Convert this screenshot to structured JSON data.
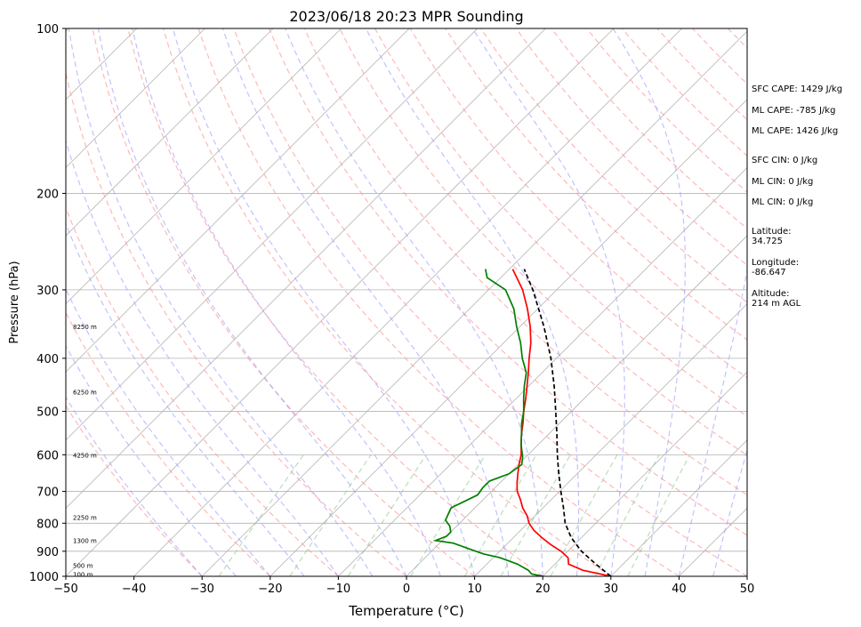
{
  "chart_data": {
    "type": "line",
    "title": "2023/06/18 20:23 MPR Sounding",
    "xlabel": "Temperature (°C)",
    "ylabel": "Pressure (hPa)",
    "xlim": [
      -50,
      50
    ],
    "ylim": [
      1000,
      100
    ],
    "y_scale": "log",
    "grid": true,
    "x_ticks": [
      -50,
      -40,
      -30,
      -20,
      -10,
      0,
      10,
      20,
      30,
      40,
      50
    ],
    "y_ticks": [
      1000,
      900,
      800,
      700,
      600,
      500,
      400,
      300,
      200,
      100
    ],
    "skew_t": true,
    "height_labels": [
      {
        "pressure": 350,
        "text": "8250 m"
      },
      {
        "pressure": 460,
        "text": "6250 m"
      },
      {
        "pressure": 600,
        "text": "4250 m"
      },
      {
        "pressure": 780,
        "text": "2250 m"
      },
      {
        "pressure": 860,
        "text": "1300 m"
      },
      {
        "pressure": 955,
        "text": "500 m"
      },
      {
        "pressure": 990,
        "text": "100 m"
      }
    ],
    "series": [
      {
        "color": "#ff0000",
        "points": [
          [
            1000,
            30
          ],
          [
            975,
            25
          ],
          [
            950,
            22
          ],
          [
            925,
            21
          ],
          [
            900,
            19
          ],
          [
            875,
            16.5
          ],
          [
            850,
            14.2
          ],
          [
            825,
            12
          ],
          [
            800,
            10.2
          ],
          [
            775,
            8.8
          ],
          [
            750,
            7
          ],
          [
            725,
            5.5
          ],
          [
            700,
            3.8
          ],
          [
            675,
            2.5
          ],
          [
            650,
            1.3
          ],
          [
            625,
            0.1
          ],
          [
            600,
            -1
          ],
          [
            575,
            -2.5
          ],
          [
            550,
            -4
          ],
          [
            525,
            -5.4
          ],
          [
            500,
            -7
          ],
          [
            475,
            -8.5
          ],
          [
            450,
            -10.2
          ],
          [
            425,
            -12
          ],
          [
            400,
            -14
          ],
          [
            375,
            -16
          ],
          [
            350,
            -18.5
          ],
          [
            325,
            -21.5
          ],
          [
            300,
            -25
          ],
          [
            275,
            -29.5
          ]
        ]
      },
      {
        "color": "#008000",
        "points": [
          [
            1000,
            20
          ],
          [
            990,
            18
          ],
          [
            975,
            17
          ],
          [
            950,
            14.5
          ],
          [
            925,
            11
          ],
          [
            910,
            8
          ],
          [
            890,
            5
          ],
          [
            870,
            2
          ],
          [
            860,
            -1
          ],
          [
            845,
            0
          ],
          [
            830,
            0
          ],
          [
            810,
            -1
          ],
          [
            790,
            -2.5
          ],
          [
            770,
            -3
          ],
          [
            750,
            -3.5
          ],
          [
            730,
            -2.5
          ],
          [
            710,
            -1.5
          ],
          [
            690,
            -1.8
          ],
          [
            670,
            -1.8
          ],
          [
            650,
            0
          ],
          [
            625,
            0.5
          ],
          [
            605,
            -0.5
          ],
          [
            590,
            -1.5
          ],
          [
            575,
            -2.5
          ],
          [
            550,
            -4
          ],
          [
            525,
            -5.6
          ],
          [
            500,
            -7
          ],
          [
            475,
            -8.8
          ],
          [
            450,
            -10.6
          ],
          [
            425,
            -12.3
          ],
          [
            400,
            -15
          ],
          [
            375,
            -17.5
          ],
          [
            350,
            -20.5
          ],
          [
            325,
            -23.5
          ],
          [
            300,
            -27.5
          ],
          [
            285,
            -32
          ],
          [
            275,
            -33.5
          ]
        ]
      },
      {
        "color": "#000000",
        "dashed": true,
        "points": [
          [
            1000,
            30
          ],
          [
            950,
            26
          ],
          [
            900,
            22
          ],
          [
            850,
            18.5
          ],
          [
            800,
            15.5
          ],
          [
            750,
            13
          ],
          [
            700,
            10.2
          ],
          [
            650,
            7.3
          ],
          [
            600,
            4.3
          ],
          [
            550,
            1.2
          ],
          [
            500,
            -2.3
          ],
          [
            450,
            -6.2
          ],
          [
            400,
            -10.8
          ],
          [
            350,
            -16.5
          ],
          [
            300,
            -23.5
          ],
          [
            275,
            -27.8
          ]
        ]
      }
    ]
  },
  "side_panel": {
    "sfc_cape": "SFC CAPE: 1429 J/kg",
    "ml_cape_1": "ML CAPE: -785 J/kg",
    "ml_cape_2": "ML CAPE: 1426 J/kg",
    "sfc_cin": "SFC CIN: 0 J/kg",
    "ml_cin_1": "ML CIN: 0 J/kg",
    "ml_cin_2": "ML CIN: 0 J/kg",
    "latitude_label": "Latitude:",
    "latitude_value": "34.725",
    "longitude_label": "Longitude:",
    "longitude_value": "-86.647",
    "altitude_label": "Altitude:",
    "altitude_value": "214 m AGL"
  },
  "colors": {
    "isotherm": "#b4b4b4",
    "dry_adiabat": "#ff9a9a",
    "moist_adiabat": "#9a9aff",
    "mixing_ratio": "#8cc88c",
    "temperature": "#ff0000",
    "dewpoint": "#008000",
    "parcel": "#000000"
  }
}
